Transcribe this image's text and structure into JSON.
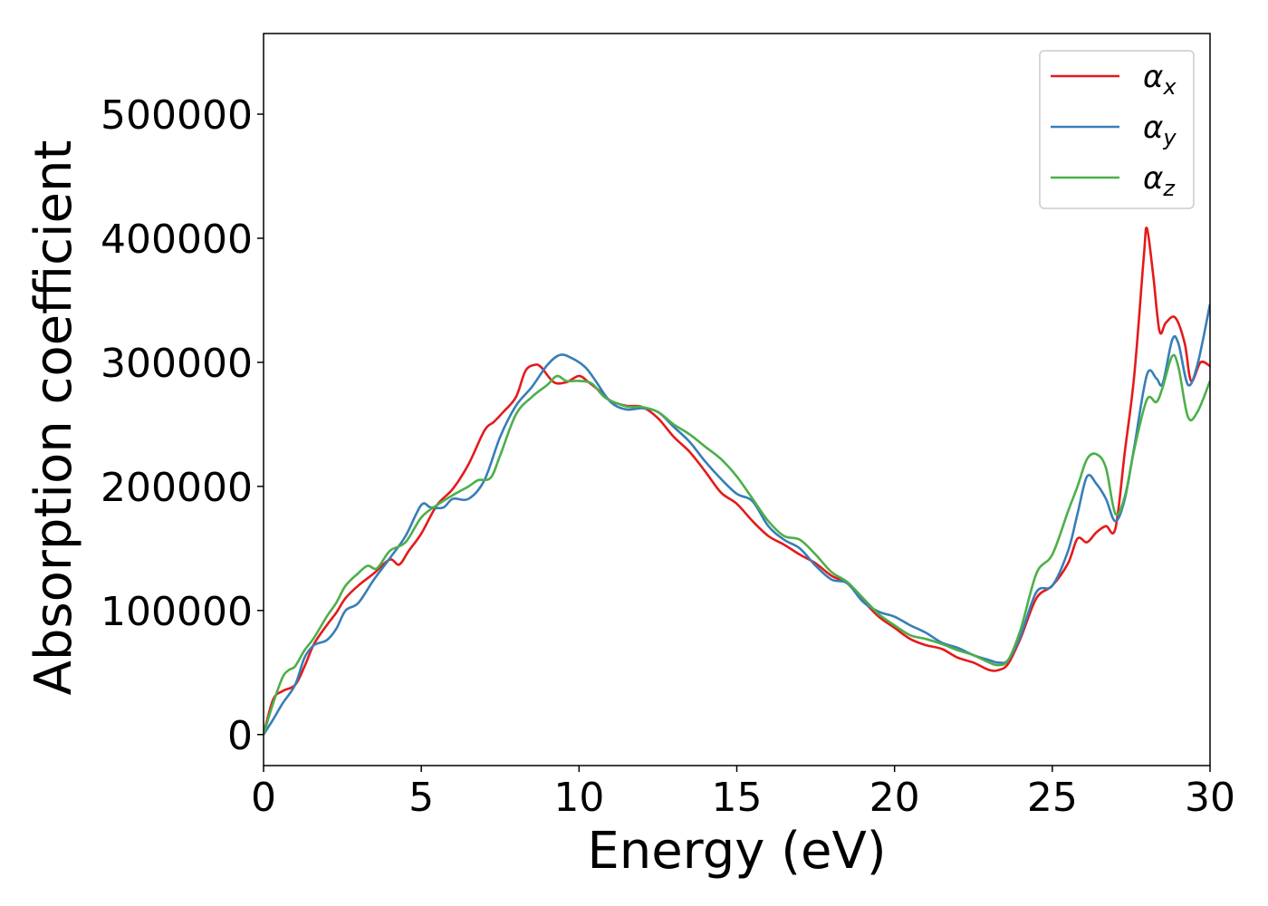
{
  "chart_data": {
    "type": "line",
    "xlabel": "Energy (eV)",
    "ylabel": "Absorption coefficient",
    "xlim": [
      0,
      30
    ],
    "ylim": [
      -25000,
      565000
    ],
    "xticks": [
      0,
      5,
      10,
      15,
      20,
      25,
      30
    ],
    "yticks": [
      0,
      100000,
      200000,
      300000,
      400000,
      500000
    ],
    "grid": false,
    "legend_position": "top-right",
    "series": [
      {
        "name": "αx",
        "symbol": "α",
        "subscript": "x",
        "color": "#e41a1c",
        "x": [
          0,
          0.3,
          0.6,
          1.0,
          1.3,
          1.6,
          2.0,
          2.3,
          2.6,
          3.0,
          3.5,
          4.0,
          4.3,
          4.6,
          5.0,
          5.5,
          6.0,
          6.5,
          7.0,
          7.3,
          7.6,
          8.0,
          8.3,
          8.6,
          8.8,
          9.2,
          9.6,
          10.0,
          10.3,
          10.6,
          11.0,
          11.5,
          12.0,
          12.5,
          13.0,
          13.5,
          14.0,
          14.5,
          15.0,
          15.5,
          16.0,
          16.5,
          17.0,
          17.5,
          18.0,
          18.5,
          19.0,
          19.5,
          20.0,
          20.5,
          21.0,
          21.5,
          22.0,
          22.5,
          23.0,
          23.3,
          23.6,
          24.0,
          24.5,
          25.0,
          25.5,
          25.8,
          26.1,
          26.4,
          26.7,
          27.0,
          27.3,
          27.6,
          27.9,
          28.0,
          28.2,
          28.4,
          28.6,
          28.9,
          29.2,
          29.4,
          29.7,
          30.0
        ],
        "y": [
          0,
          28000,
          35000,
          40000,
          55000,
          73000,
          88000,
          98000,
          110000,
          120000,
          130000,
          141000,
          137000,
          148000,
          162000,
          185000,
          198000,
          218000,
          245000,
          252000,
          260000,
          272000,
          293000,
          298000,
          296000,
          284000,
          284000,
          289000,
          284000,
          278000,
          269000,
          265000,
          264000,
          255000,
          240000,
          228000,
          212000,
          195000,
          186000,
          172000,
          160000,
          153000,
          145000,
          138000,
          128000,
          122000,
          108000,
          95000,
          86000,
          77000,
          72000,
          69000,
          62000,
          58000,
          52000,
          52000,
          57000,
          78000,
          110000,
          120000,
          138000,
          158000,
          155000,
          163000,
          168000,
          166000,
          228000,
          290000,
          385000,
          408000,
          370000,
          325000,
          332000,
          336000,
          315000,
          285000,
          300000,
          297000
        ]
      },
      {
        "name": "αy",
        "symbol": "α",
        "subscript": "y",
        "color": "#377eb8",
        "x": [
          0,
          0.3,
          0.6,
          1.0,
          1.3,
          1.6,
          2.0,
          2.3,
          2.6,
          3.0,
          3.5,
          4.0,
          4.5,
          5.0,
          5.3,
          5.7,
          6.0,
          6.5,
          7.0,
          7.5,
          8.0,
          8.5,
          9.0,
          9.4,
          9.8,
          10.2,
          10.5,
          11.0,
          11.5,
          12.0,
          12.5,
          13.0,
          13.5,
          14.0,
          14.5,
          15.0,
          15.5,
          16.0,
          16.5,
          17.0,
          17.5,
          18.0,
          18.5,
          19.0,
          19.5,
          20.0,
          20.5,
          21.0,
          21.5,
          22.0,
          22.5,
          23.0,
          23.3,
          23.6,
          24.0,
          24.5,
          25.0,
          25.5,
          25.8,
          26.1,
          26.4,
          26.7,
          27.0,
          27.3,
          27.6,
          28.0,
          28.3,
          28.5,
          28.8,
          29.0,
          29.3,
          29.6,
          30.0
        ],
        "y": [
          0,
          12000,
          25000,
          40000,
          62000,
          72000,
          76000,
          85000,
          100000,
          106000,
          125000,
          142000,
          160000,
          185000,
          183000,
          183000,
          190000,
          190000,
          205000,
          240000,
          265000,
          280000,
          298000,
          306000,
          303000,
          296000,
          286000,
          268000,
          262000,
          263000,
          260000,
          248000,
          236000,
          220000,
          206000,
          194000,
          188000,
          168000,
          157000,
          150000,
          136000,
          125000,
          122000,
          107000,
          99000,
          95000,
          88000,
          82000,
          74000,
          70000,
          64000,
          60000,
          58000,
          60000,
          80000,
          115000,
          120000,
          148000,
          178000,
          208000,
          202000,
          190000,
          172000,
          190000,
          232000,
          290000,
          287000,
          283000,
          318000,
          315000,
          282000,
          298000,
          347000
        ]
      },
      {
        "name": "αz",
        "symbol": "α",
        "subscript": "z",
        "color": "#4daf4a",
        "x": [
          0,
          0.3,
          0.6,
          0.8,
          1.0,
          1.3,
          1.6,
          2.0,
          2.3,
          2.6,
          3.0,
          3.3,
          3.6,
          4.0,
          4.5,
          5.0,
          5.5,
          6.0,
          6.5,
          6.8,
          7.2,
          7.5,
          8.0,
          8.5,
          9.0,
          9.3,
          9.6,
          10.0,
          10.4,
          10.8,
          11.2,
          11.6,
          12.0,
          12.5,
          13.0,
          13.5,
          14.0,
          14.5,
          15.0,
          15.5,
          16.0,
          16.5,
          17.0,
          17.5,
          18.0,
          18.5,
          19.0,
          19.5,
          20.0,
          20.5,
          21.0,
          21.5,
          22.0,
          22.5,
          23.0,
          23.3,
          23.6,
          24.0,
          24.5,
          25.0,
          25.5,
          25.8,
          26.1,
          26.4,
          26.7,
          27.0,
          27.3,
          27.6,
          28.0,
          28.3,
          28.5,
          28.8,
          29.0,
          29.3,
          29.6,
          30.0
        ],
        "y": [
          0,
          25000,
          46000,
          52000,
          55000,
          68000,
          78000,
          95000,
          106000,
          120000,
          130000,
          136000,
          134000,
          148000,
          155000,
          175000,
          185000,
          193000,
          200000,
          205000,
          207000,
          225000,
          258000,
          272000,
          282000,
          289000,
          285000,
          285000,
          283000,
          272000,
          267000,
          264000,
          264000,
          260000,
          250000,
          242000,
          232000,
          222000,
          208000,
          190000,
          172000,
          160000,
          157000,
          145000,
          131000,
          123000,
          110000,
          97000,
          88000,
          80000,
          77000,
          73000,
          68000,
          64000,
          58000,
          56000,
          60000,
          85000,
          130000,
          145000,
          180000,
          200000,
          222000,
          226000,
          215000,
          178000,
          192000,
          230000,
          270000,
          268000,
          280000,
          305000,
          296000,
          256000,
          260000,
          285000
        ]
      }
    ]
  }
}
